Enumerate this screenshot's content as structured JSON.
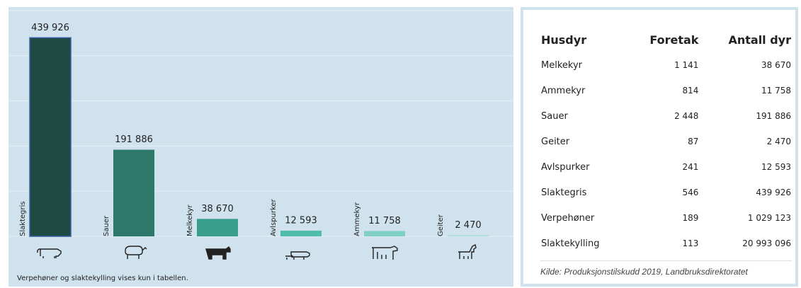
{
  "chart_data": {
    "type": "bar",
    "categories": [
      "Slaktegris",
      "Sauer",
      "Melkekyr",
      "Avlspurker",
      "Ammekyr",
      "Geiter"
    ],
    "values": [
      439926,
      191886,
      38670,
      12593,
      11758,
      2470
    ],
    "value_labels": [
      "439 926",
      "191 886",
      "38 670",
      "12 593",
      "11 758",
      "2 470"
    ],
    "colors": [
      "#1f4a43",
      "#2e786a",
      "#3a9e8c",
      "#4fbcad",
      "#7fcfc3",
      "#a9ddd5"
    ],
    "ylim": [
      0,
      500000
    ],
    "yticks": [
      0,
      100000,
      200000,
      300000,
      400000,
      500000
    ],
    "grid": true,
    "note": "Verpehøner og slaktekylling vises kun i tabellen."
  },
  "table": {
    "columns": [
      "Husdyr",
      "Foretak",
      "Antall dyr"
    ],
    "rows": [
      [
        "Melkekyr",
        "1 141",
        "38 670"
      ],
      [
        "Ammekyr",
        "814",
        "11 758"
      ],
      [
        "Sauer",
        "2 448",
        "191 886"
      ],
      [
        "Geiter",
        "87",
        "2 470"
      ],
      [
        "Avlspurker",
        "241",
        "12 593"
      ],
      [
        "Slaktegris",
        "546",
        "439 926"
      ],
      [
        "Verpehøner",
        "189",
        "1 029 123"
      ],
      [
        "Slaktekylling",
        "113",
        "20 993 096"
      ]
    ]
  },
  "source": "Kilde: Produksjonstilskudd 2019, Landbruksdirektoratet"
}
